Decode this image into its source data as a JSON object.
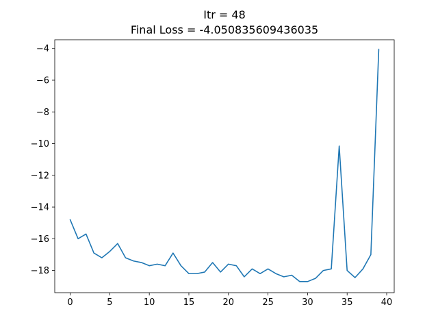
{
  "chart_data": {
    "type": "line",
    "title": "Itr = 48",
    "subtitle": "Final Loss = -4.050835609436035",
    "xlabel": "",
    "ylabel": "",
    "xlim": [
      -1.95,
      40.95
    ],
    "ylim": [
      -19.4,
      -3.45
    ],
    "x_ticks": [
      0,
      5,
      10,
      15,
      20,
      25,
      30,
      35,
      40
    ],
    "x_tick_labels": [
      "0",
      "5",
      "10",
      "15",
      "20",
      "25",
      "30",
      "35",
      "40"
    ],
    "y_ticks": [
      -18,
      -16,
      -14,
      -12,
      -10,
      -8,
      -6,
      -4
    ],
    "y_tick_labels": [
      "−18",
      "−16",
      "−14",
      "−12",
      "−10",
      "−8",
      "−6",
      "−4"
    ],
    "grid": false,
    "series": [
      {
        "color": "#1f77b4",
        "x": [
          0,
          1,
          2,
          3,
          4,
          5,
          6,
          7,
          8,
          9,
          10,
          11,
          12,
          13,
          14,
          15,
          16,
          17,
          18,
          19,
          20,
          21,
          22,
          23,
          24,
          25,
          26,
          27,
          28,
          29,
          30,
          31,
          32,
          33,
          34,
          35,
          36,
          37,
          38,
          39
        ],
        "y": [
          -14.8,
          -16.0,
          -15.7,
          -16.9,
          -17.2,
          -16.8,
          -16.3,
          -17.2,
          -17.4,
          -17.5,
          -17.7,
          -17.6,
          -17.7,
          -16.9,
          -17.7,
          -18.2,
          -18.2,
          -18.1,
          -17.5,
          -18.1,
          -17.6,
          -17.7,
          -18.4,
          -17.9,
          -18.2,
          -17.9,
          -18.2,
          -18.4,
          -18.3,
          -18.7,
          -18.7,
          -18.5,
          -18.0,
          -17.9,
          -10.15,
          -18.0,
          -18.45,
          -17.9,
          -17.0,
          -4.05
        ]
      }
    ]
  }
}
